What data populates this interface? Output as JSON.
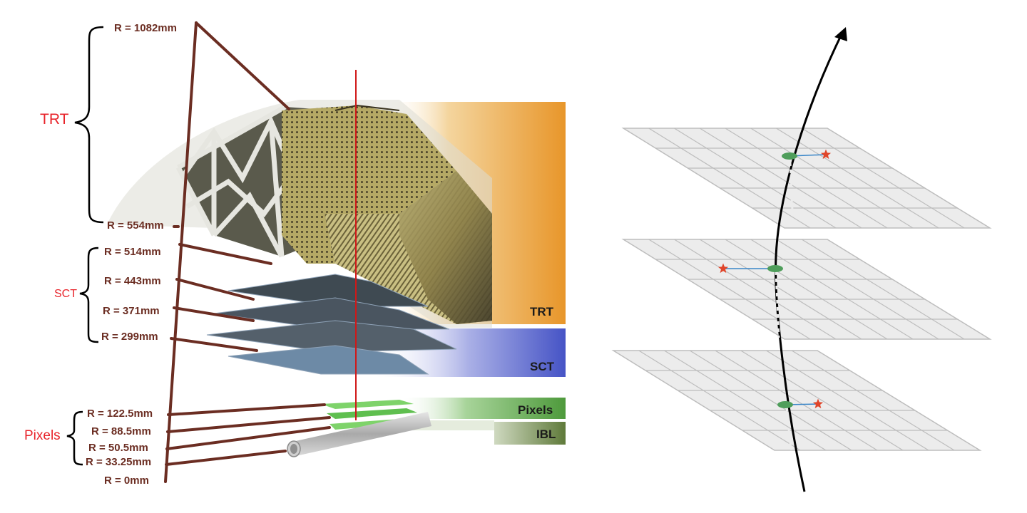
{
  "detector": {
    "groups": {
      "trt": "TRT",
      "sct": "SCT",
      "pixels": "Pixels"
    },
    "bands": {
      "trt": "TRT",
      "sct": "SCT",
      "pixels": "Pixels",
      "ibl": "IBL"
    },
    "radii": [
      "R = 1082mm",
      "R = 554mm",
      "R = 514mm",
      "R = 443mm",
      "R = 371mm",
      "R = 299mm",
      "R = 122.5mm",
      "R = 88.5mm",
      "R = 50.5mm",
      "R = 33.25mm",
      "R = 0mm"
    ],
    "colors": {
      "leader_line": "#6b2d22",
      "group_label": "#e8232a",
      "trt_band": "#e89a2e",
      "sct_band": "#4a57c8",
      "pixel_band": "#4e9a3c",
      "ibl_band": "#5f7a3a"
    }
  },
  "track_diagram": {
    "colors": {
      "plane": "#ececec",
      "grid": "#bdbdbd",
      "hit": "#4f9e5b",
      "star": "#e0452a",
      "link": "#3a86c8",
      "track": "#000000"
    }
  }
}
